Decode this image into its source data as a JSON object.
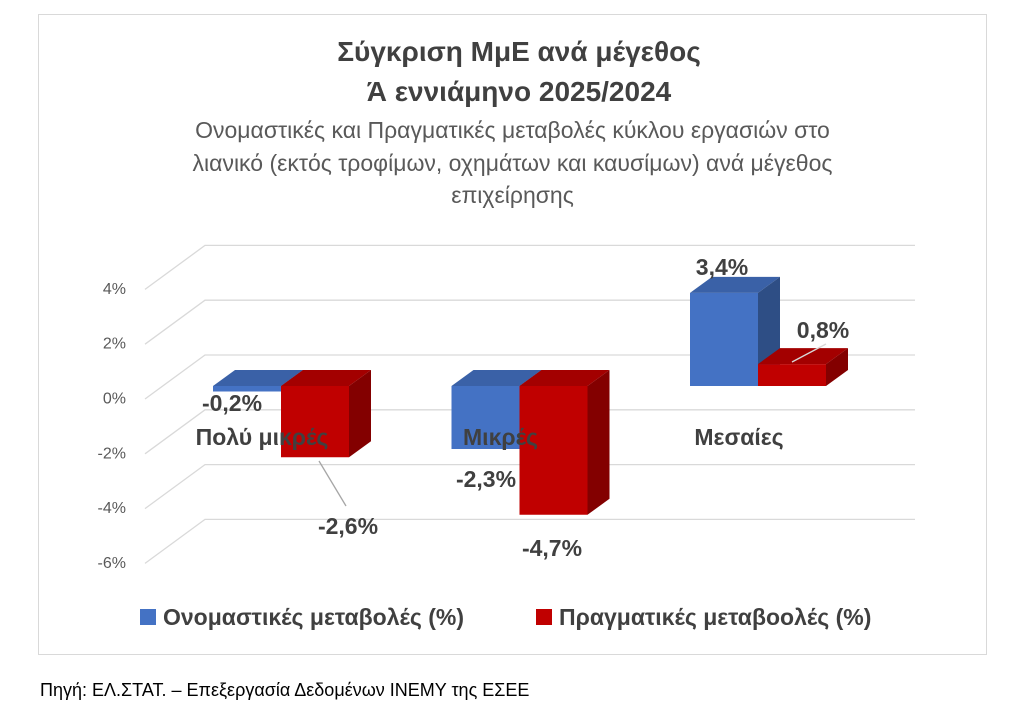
{
  "chart_data": {
    "type": "bar",
    "bar_style": "3d-clustered-column",
    "title_lines": [
      "Σύγκριση ΜμΕ ανά μέγεθος",
      "Ά εννιάμηνο 2025/2024"
    ],
    "subtitle_lines": [
      "Ονομαστικές και Πραγματικές μεταβολές κύκλου εργασιών στο",
      "λιανικό (εκτός τροφίμων, οχημάτων και καυσίμων) ανά μέγεθος",
      "επιχείρησης"
    ],
    "categories": [
      "Πολύ μικρές",
      "Μικρές",
      "Μεσαίες"
    ],
    "series": [
      {
        "name": "Ονομαστικές μεταβολές (%)",
        "color": "#4472C4",
        "values": [
          -0.2,
          -2.3,
          3.4
        ],
        "data_labels": [
          "-0,2%",
          "-2,3%",
          "3,4%"
        ]
      },
      {
        "name": "Πραγματικές μεταβοολές (%)",
        "color": "#C00000",
        "values": [
          -2.6,
          -4.7,
          0.8
        ],
        "data_labels": [
          "-2,6%",
          "-4,7%",
          "0,8%"
        ]
      }
    ],
    "y_ticks": [
      {
        "value": 4,
        "label": "4%"
      },
      {
        "value": 2,
        "label": "2%"
      },
      {
        "value": 0,
        "label": "0%"
      },
      {
        "value": -2,
        "label": "-2%"
      },
      {
        "value": -4,
        "label": "-4%"
      },
      {
        "value": -6,
        "label": "-6%"
      }
    ],
    "ylim": [
      -6,
      4
    ],
    "grid": true,
    "legend_position": "bottom"
  },
  "source": "Πηγή: ΕΛ.ΣΤΑΤ. – Επεξεργασία Δεδομένων ΙΝΕΜΥ της ΕΣΕΕ"
}
